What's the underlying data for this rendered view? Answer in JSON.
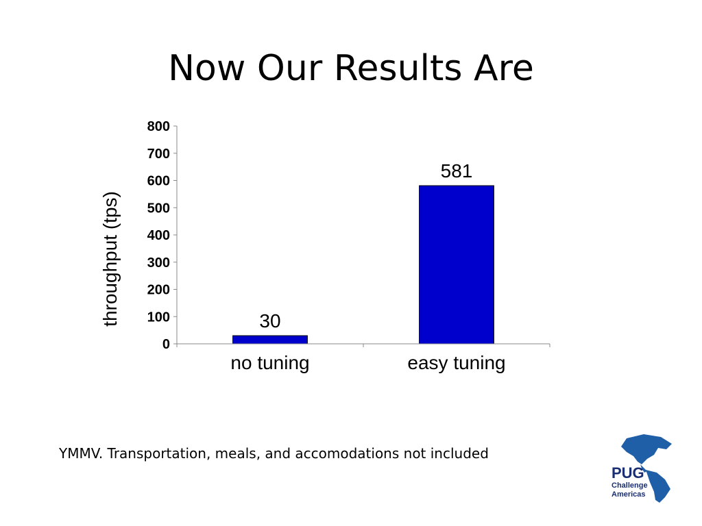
{
  "slide": {
    "title": "Now Our Results Are",
    "footnote": "YMMV.  Transportation, meals, and accomodations not included"
  },
  "logo": {
    "line1": "PUG",
    "line2": "Challenge",
    "line3": "Americas",
    "color": "#1a2f73",
    "map_color": "#1f5fa8"
  },
  "chart_data": {
    "type": "bar",
    "categories": [
      "no tuning",
      "easy tuning"
    ],
    "values": [
      30,
      581
    ],
    "data_labels": [
      "30",
      "581"
    ],
    "ylabel": "throughput (tps)",
    "ylim": [
      0,
      800
    ],
    "yticks": [
      0,
      100,
      200,
      300,
      400,
      500,
      600,
      700,
      800
    ],
    "bar_color": "#0000cc",
    "grid": false,
    "legend": "none"
  }
}
